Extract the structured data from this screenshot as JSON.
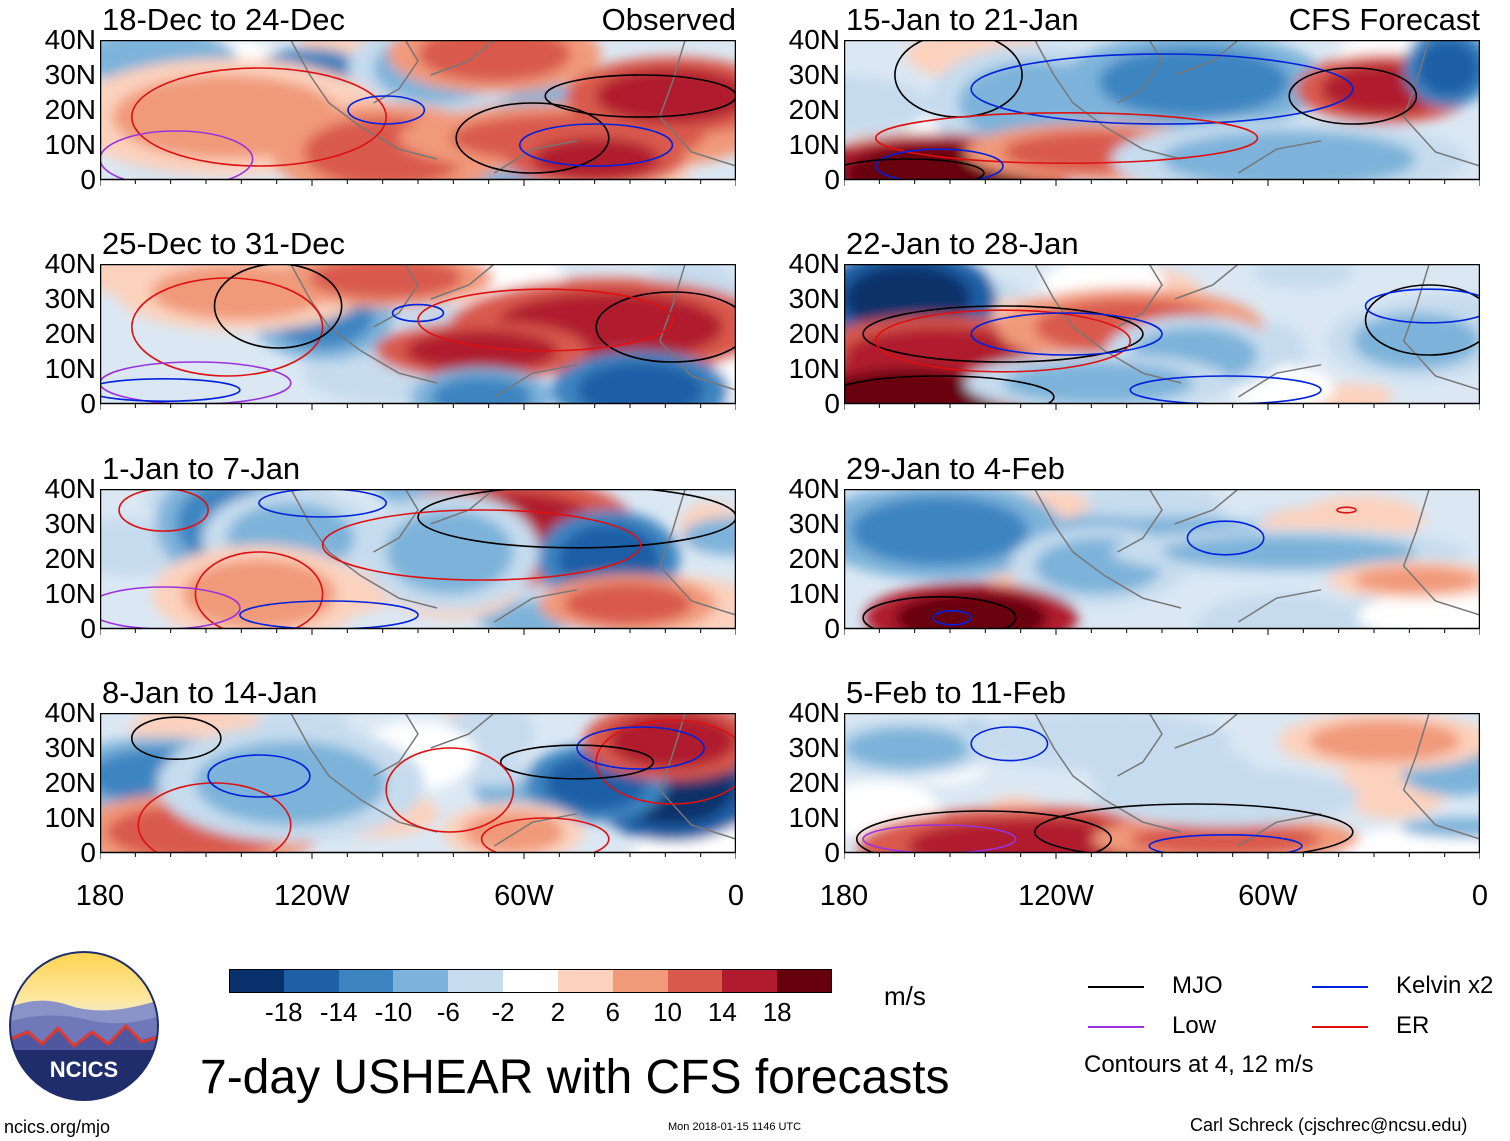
{
  "chart_data": {
    "type": "heatmap",
    "title": "7-day USHEAR with CFS forecasts",
    "units": "m/s",
    "columns": [
      {
        "label": "Observed",
        "panels": [
          "18-Dec to 24-Dec",
          "25-Dec to 31-Dec",
          "1-Jan to 7-Jan",
          "8-Jan to 14-Jan"
        ]
      },
      {
        "label": "CFS Forecast",
        "panels": [
          "15-Jan to 21-Jan",
          "22-Jan to 28-Jan",
          "29-Jan to 4-Feb",
          "5-Feb to 11-Feb"
        ]
      }
    ],
    "y_ticks": [
      "40N",
      "30N",
      "20N",
      "10N",
      "0"
    ],
    "x_ticks": [
      "180",
      "120W",
      "60W",
      "0"
    ],
    "colorbar": {
      "levels": [
        "-18",
        "-14",
        "-10",
        "-6",
        "-2",
        "2",
        "6",
        "10",
        "14",
        "18"
      ],
      "colors": [
        "#08306b",
        "#1f5fa6",
        "#3d85c1",
        "#7db3da",
        "#c6dcee",
        "#ffffff",
        "#fcd2bd",
        "#f19a7a",
        "#d95a4d",
        "#b01c2e",
        "#67000d"
      ]
    },
    "legend": [
      {
        "label": "MJO",
        "color": "#000000"
      },
      {
        "label": "Kelvin x2",
        "color": "#0022dd"
      },
      {
        "label": "Low",
        "color": "#9933dd"
      },
      {
        "label": "ER",
        "color": "#dd1111"
      }
    ],
    "contour_note": "Contours at 4, 12 m/s"
  },
  "footer": {
    "left": "ncics.org/mjo",
    "center": "Mon 2018-01-15 1146 UTC",
    "right": "Carl Schreck (cjschrec@ncsu.edu)"
  },
  "logo_text": "NCICS"
}
